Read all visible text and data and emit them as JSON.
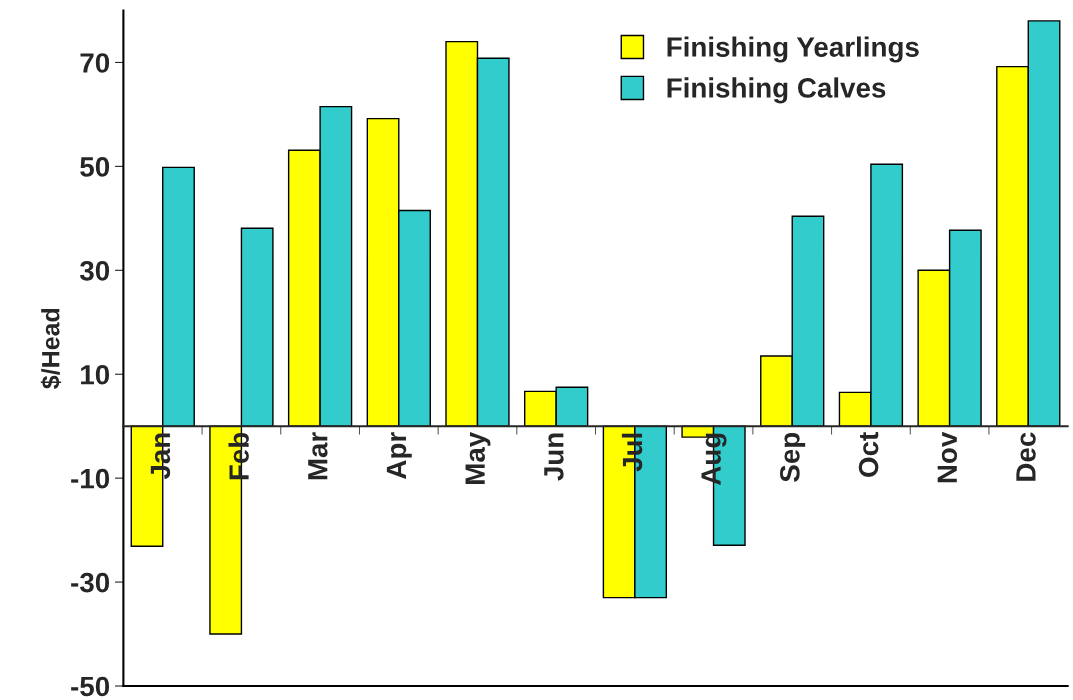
{
  "chart_data": {
    "type": "bar",
    "ylabel": "$/Head",
    "categories": [
      "Jan",
      "Feb",
      "Mar",
      "Apr",
      "May",
      "Jun",
      "Jul",
      "Aug",
      "Sep",
      "Oct",
      "Nov",
      "Dec"
    ],
    "series": [
      {
        "name": "Finishing Yearlings",
        "color": "#ffff00",
        "values": [
          -23.1,
          -40,
          53.1,
          59.2,
          74,
          6.7,
          -33,
          -2.1,
          13.5,
          6.5,
          30,
          69.2
        ]
      },
      {
        "name": "Finishing Calves",
        "color": "#33cccc",
        "values": [
          49.8,
          38.1,
          61.5,
          41.5,
          70.8,
          7.5,
          -33,
          -22.9,
          40.4,
          50.4,
          37.7,
          78
        ]
      }
    ],
    "ylim": [
      -50,
      80
    ],
    "yticks": [
      -50,
      -30,
      -10,
      10,
      30,
      50,
      70
    ],
    "grid": false,
    "legend": "top right"
  }
}
